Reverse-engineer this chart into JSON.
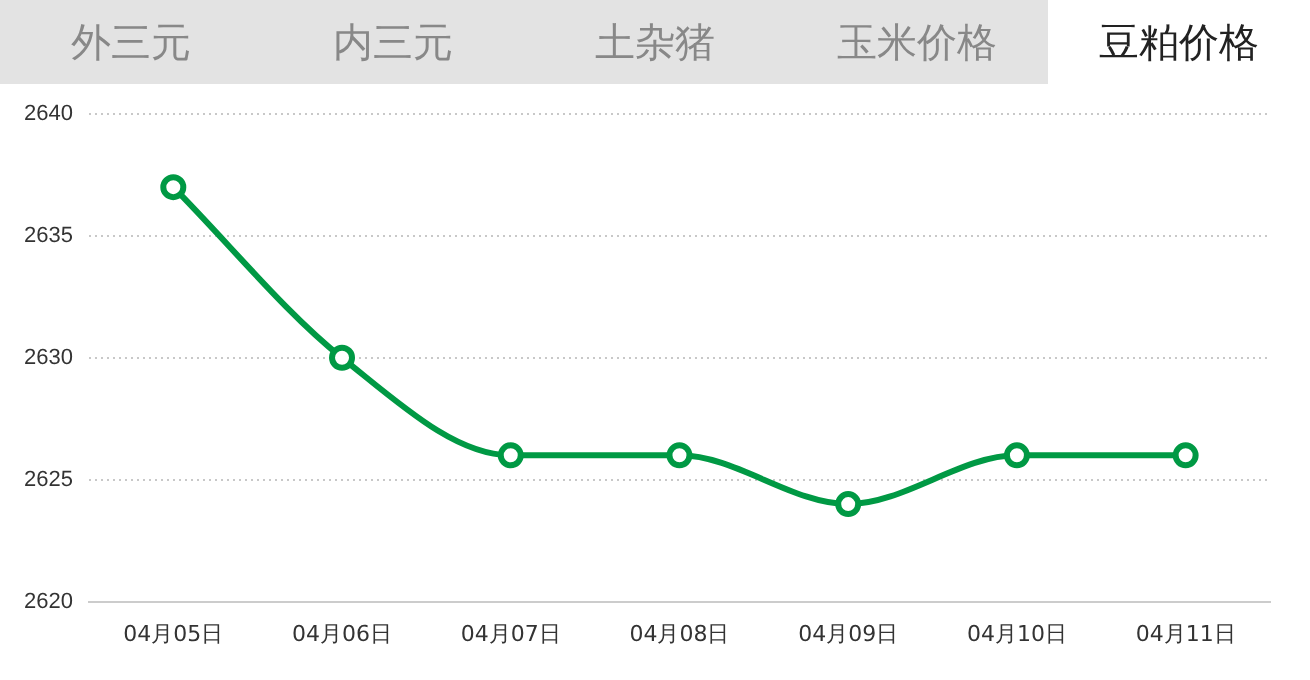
{
  "chart_data": {
    "type": "line",
    "title": "豆粕价格",
    "annotations": [
      "外三元",
      "内三元",
      "土杂猪",
      "玉米价格"
    ],
    "categories": [
      "04月05日",
      "04月06日",
      "04月07日",
      "04月08日",
      "04月09日",
      "04月10日",
      "04月11日"
    ],
    "series": [
      {
        "color": "#009944",
        "values": [
          2637,
          2630,
          2626,
          2626,
          2624,
          2626,
          2626
        ]
      }
    ],
    "ylim": [
      2620,
      2640
    ],
    "yticks": [
      2620,
      2625,
      2630,
      2635,
      2640
    ],
    "grid": "y",
    "legend": false,
    "marker": "circle",
    "line_style": "solid"
  }
}
